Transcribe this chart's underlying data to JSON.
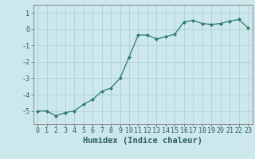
{
  "x": [
    0,
    1,
    2,
    3,
    4,
    5,
    6,
    7,
    8,
    9,
    10,
    11,
    12,
    13,
    14,
    15,
    16,
    17,
    18,
    19,
    20,
    21,
    22,
    23
  ],
  "y": [
    -5.0,
    -5.0,
    -5.3,
    -5.1,
    -5.0,
    -4.6,
    -4.3,
    -3.8,
    -3.6,
    -3.0,
    -1.7,
    -0.35,
    -0.35,
    -0.6,
    -0.45,
    -0.3,
    0.45,
    0.55,
    0.35,
    0.3,
    0.35,
    0.5,
    0.6,
    0.1
  ],
  "line_color": "#2d7a6e",
  "marker": "D",
  "marker_size": 2.2,
  "bg_color": "#cce8ec",
  "grid_color": "#aaccd0",
  "xlabel": "Humidex (Indice chaleur)",
  "xlim": [
    -0.5,
    23.5
  ],
  "ylim": [
    -5.8,
    1.5
  ],
  "yticks": [
    -5,
    -4,
    -3,
    -2,
    -1,
    0,
    1
  ],
  "xticks": [
    0,
    1,
    2,
    3,
    4,
    5,
    6,
    7,
    8,
    9,
    10,
    11,
    12,
    13,
    14,
    15,
    16,
    17,
    18,
    19,
    20,
    21,
    22,
    23
  ],
  "xtick_labels": [
    "0",
    "1",
    "2",
    "3",
    "4",
    "5",
    "6",
    "7",
    "8",
    "9",
    "10",
    "11",
    "12",
    "13",
    "14",
    "15",
    "16",
    "17",
    "18",
    "19",
    "20",
    "21",
    "22",
    "23"
  ],
  "ytick_labels": [
    "1",
    "0",
    "-1",
    "-2",
    "-3",
    "-4",
    "-5"
  ],
  "tick_fontsize": 6.0,
  "xlabel_fontsize": 7.5,
  "line_width": 0.9
}
